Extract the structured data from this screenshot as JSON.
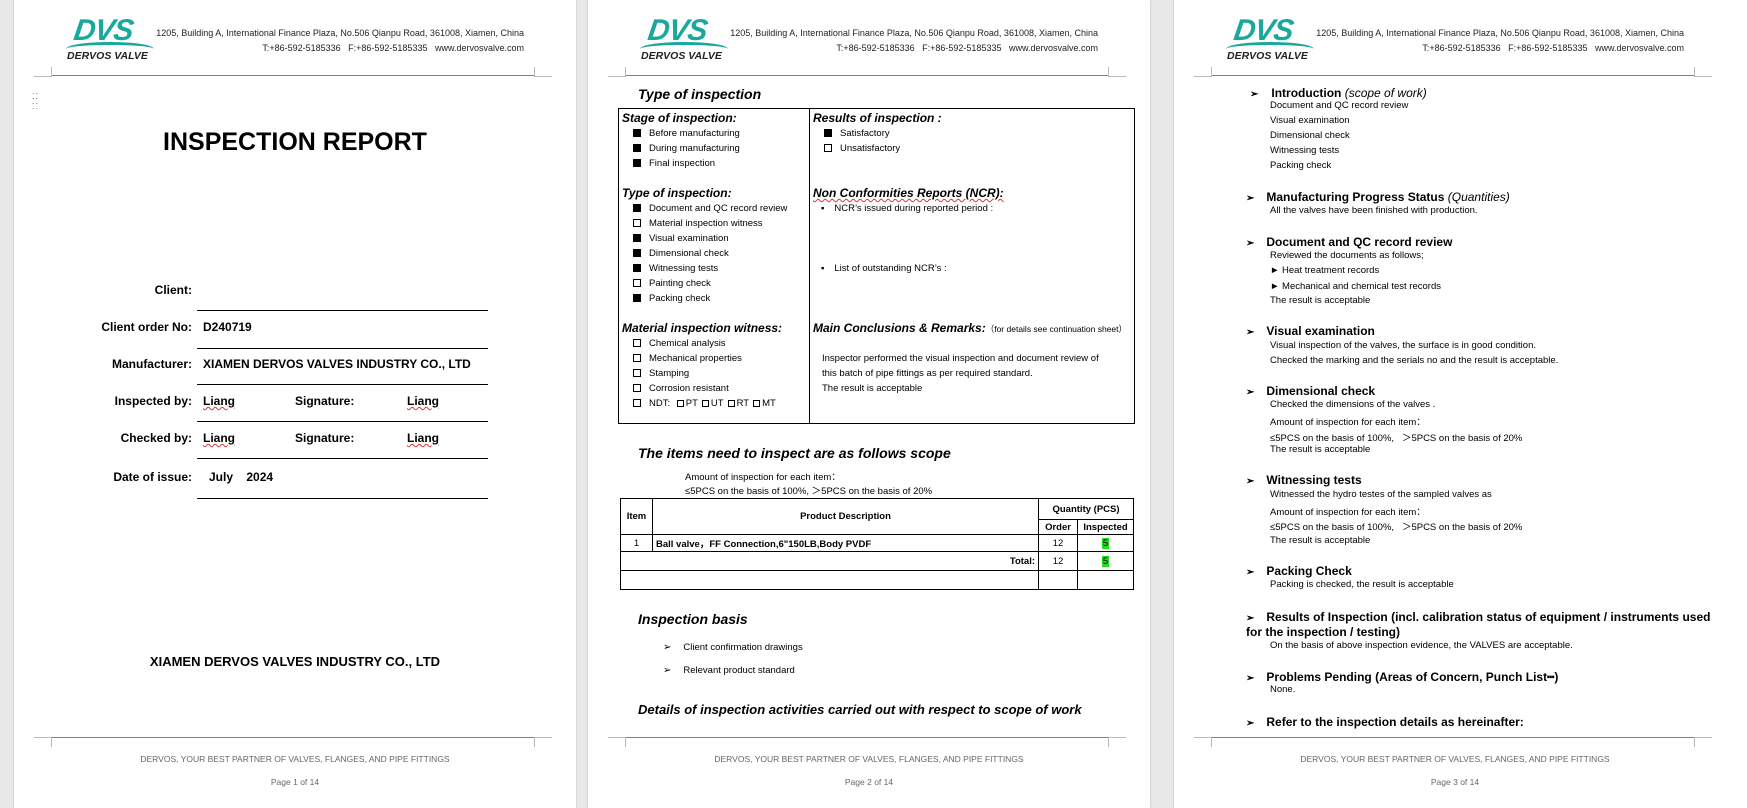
{
  "header": {
    "logo_text": "DVS",
    "logo_name": "DERVOS VALVE",
    "address": "1205, Building A, International Finance Plaza, No.506 Qianpu Road, 361008, Xiamen, China",
    "contact": "T:+86-592-5185336   F:+86-592-5185335   www.dervosvalve.com",
    "accent": "#1aa89c"
  },
  "footer": {
    "slogan": "DERVOS, YOUR BEST PARTNER OF VALVES, FLANGES, AND PIPE FITTINGS",
    "pages": [
      "Page 1 of 14",
      "Page 2 of 14",
      "Page 3 of 14"
    ]
  },
  "page1": {
    "title": "INSPECTION REPORT",
    "fields": {
      "client_label": "Client:",
      "client_value": "",
      "order_label": "Client order No:",
      "order_value": "D240719",
      "manufacturer_label": "Manufacturer:",
      "manufacturer_value": "XIAMEN DERVOS VALVES INDUSTRY CO., LTD",
      "inspected_label": "Inspected by:",
      "inspected_value": "Liang",
      "signature_label": "Signature:",
      "inspected_signature": "Liang",
      "checked_label": "Checked by:",
      "checked_value": "Liang",
      "checked_signature": "Liang",
      "date_label": "Date of issue:",
      "date_value": "July    2024"
    },
    "company": "XIAMEN DERVOS VALVES INDUSTRY CO., LTD"
  },
  "page2": {
    "section_title": "Type of inspection",
    "stage": {
      "heading": "Stage of inspection:",
      "items": [
        {
          "label": "Before manufacturing",
          "checked": true
        },
        {
          "label": "During manufacturing",
          "checked": true
        },
        {
          "label": "Final inspection",
          "checked": true
        }
      ]
    },
    "type": {
      "heading": "Type of inspection:",
      "items": [
        {
          "label": "Document and QC record review",
          "checked": true
        },
        {
          "label": "Material inspection witness",
          "checked": false
        },
        {
          "label": "Visual examination",
          "checked": true
        },
        {
          "label": "Dimensional check",
          "checked": true
        },
        {
          "label": "Witnessing tests",
          "checked": true
        },
        {
          "label": "Painting check",
          "checked": false
        },
        {
          "label": "Packing check",
          "checked": true
        }
      ]
    },
    "material": {
      "heading": "Material inspection witness:",
      "items": [
        {
          "label": "Chemical analysis",
          "checked": false
        },
        {
          "label": "Mechanical properties",
          "checked": false
        },
        {
          "label": "Stamping",
          "checked": false
        },
        {
          "label": "Corrosion resistant",
          "checked": false
        }
      ],
      "ndt_label": "NDT:",
      "ndt_options": [
        "PT",
        "UT",
        "RT",
        "MT"
      ]
    },
    "results": {
      "heading": "Results of inspection :",
      "items": [
        {
          "label": "Satisfactory",
          "checked": true
        },
        {
          "label": "Unsatisfactory",
          "checked": false
        }
      ]
    },
    "ncr": {
      "heading": "Non Conformities Reports (NCR):",
      "issued": "NCR’s issued during reported period :",
      "outstanding": "List of outstanding NCR’s :"
    },
    "conclusions": {
      "heading": "Main Conclusions & Remarks:",
      "note": "（for details see continuation sheet）",
      "lines": [
        "Inspector performed the visual inspection and document review of",
        "this batch of pipe fittings as per required standard.",
        "The result is acceptable"
      ]
    },
    "scope_title": "The items need to inspect are as follows scope",
    "amount_lines": [
      "Amount of inspection for each item：",
      "≤5PCS on the basis of 100%,   ＞5PCS on the basis of 20%"
    ],
    "table": {
      "headers": {
        "item": "Item",
        "desc": "Product Description",
        "qty": "Quantity (PCS)",
        "order": "Order",
        "inspected": "Inspected"
      },
      "rows": [
        {
          "item": "1",
          "desc": "Ball valve，FF Connection,6\"150LB,Body PVDF",
          "order": "12",
          "inspected": "5"
        }
      ],
      "total_label": "Total:",
      "total_order": "12",
      "total_inspected": "5",
      "highlight": "#22dd22"
    },
    "basis_title": "Inspection basis",
    "basis_items": [
      "Client confirmation drawings",
      "Relevant product standard"
    ],
    "details_title": "Details of inspection activities carried out with respect to scope of work"
  },
  "page3": {
    "sections": [
      {
        "title": "Introduction",
        "title_note": "(scope of work)",
        "lines": [
          "Document and QC record review",
          "Visual examination",
          "Dimensional check",
          "Witnessing tests",
          "Packing check"
        ]
      },
      {
        "title": "Manufacturing Progress Status",
        "title_note": "(Quantities)",
        "lines": [
          "All the valves have been finished with production."
        ]
      },
      {
        "title": "Document and QC record review",
        "lines": [
          "Reviewed the documents as follows;",
          "► Heat treatment records",
          "► Mechanical and chemical test records",
          "The result is acceptable"
        ]
      },
      {
        "title": "Visual examination",
        "lines": [
          "Visual inspection of the valves, the surface is in good condition.",
          "Checked the marking and the serials no and the result is acceptable."
        ]
      },
      {
        "title": "Dimensional check",
        "lines": [
          "Checked the dimensions of the valves .",
          "Amount of inspection for each item：",
          "≤5PCS on the basis of 100%,   ＞5PCS on the basis of 20%",
          "The result is acceptable"
        ]
      },
      {
        "title": "Witnessing tests",
        "lines": [
          "Witnessed the hydro testes of the sampled valves as",
          "Amount of inspection for each item：",
          "≤5PCS on the basis of 100%,   ＞5PCS on the basis of 20%",
          "The result is acceptable"
        ]
      },
      {
        "title": "Packing Check",
        "lines": [
          "Packing is checked, the result is acceptable"
        ]
      },
      {
        "title": "Results of Inspection (incl. calibration status of equipment / instruments used",
        "title2": "for the inspection / testing)",
        "lines": [
          "On the basis of above inspection evidence, the VALVES are acceptable."
        ]
      },
      {
        "title": "Problems Pending (Areas of Concern, Punch List┅)",
        "lines": [
          "None."
        ]
      },
      {
        "title": "Refer to the inspection details as hereinafter:",
        "lines": []
      }
    ]
  }
}
